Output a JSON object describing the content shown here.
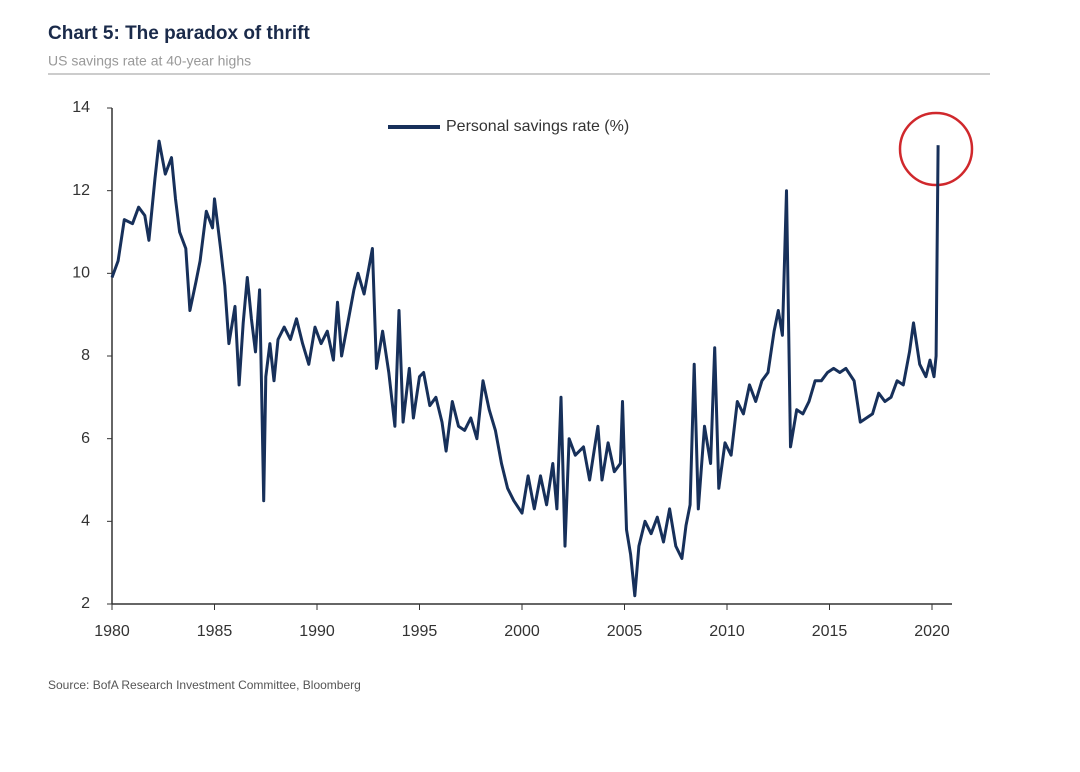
{
  "chart_data": {
    "type": "line",
    "title": "Chart 5: The paradox of thrift",
    "subtitle": "US savings rate at 40-year highs",
    "source": "Source: BofA Research Investment Committee, Bloomberg",
    "xlim": [
      1980,
      2021
    ],
    "xticks": [
      1980,
      1985,
      1990,
      1995,
      2000,
      2005,
      2010,
      2015,
      2020
    ],
    "ylim": [
      2,
      14
    ],
    "yticks": [
      2,
      4,
      6,
      8,
      10,
      12,
      14
    ],
    "grid": false,
    "legend": "top",
    "series": [
      {
        "name": "Personal savings rate (%)",
        "color": "#17305a",
        "x": [
          1980.0,
          1980.3,
          1980.6,
          1981.0,
          1981.3,
          1981.6,
          1981.8,
          1982.1,
          1982.3,
          1982.6,
          1982.9,
          1983.1,
          1983.3,
          1983.6,
          1983.8,
          1984.1,
          1984.3,
          1984.6,
          1984.9,
          1985.0,
          1985.3,
          1985.5,
          1985.7,
          1986.0,
          1986.2,
          1986.4,
          1986.6,
          1986.8,
          1987.0,
          1987.2,
          1987.3,
          1987.4,
          1987.5,
          1987.7,
          1987.9,
          1988.1,
          1988.4,
          1988.7,
          1989.0,
          1989.3,
          1989.6,
          1989.9,
          1990.2,
          1990.5,
          1990.8,
          1991.0,
          1991.2,
          1991.5,
          1991.8,
          1992.0,
          1992.3,
          1992.7,
          1992.9,
          1993.2,
          1993.5,
          1993.8,
          1994.0,
          1994.2,
          1994.5,
          1994.7,
          1995.0,
          1995.2,
          1995.5,
          1995.8,
          1996.1,
          1996.3,
          1996.6,
          1996.9,
          1997.2,
          1997.5,
          1997.8,
          1998.1,
          1998.4,
          1998.7,
          1999.0,
          1999.3,
          1999.6,
          2000.0,
          2000.3,
          2000.6,
          2000.9,
          2001.2,
          2001.5,
          2001.7,
          2001.9,
          2002.1,
          2002.3,
          2002.6,
          2003.0,
          2003.3,
          2003.7,
          2003.9,
          2004.2,
          2004.5,
          2004.8,
          2004.9,
          2005.1,
          2005.3,
          2005.5,
          2005.7,
          2006.0,
          2006.3,
          2006.6,
          2006.9,
          2007.2,
          2007.5,
          2007.8,
          2008.0,
          2008.2,
          2008.4,
          2008.6,
          2008.9,
          2009.2,
          2009.4,
          2009.6,
          2009.9,
          2010.2,
          2010.5,
          2010.8,
          2011.1,
          2011.4,
          2011.7,
          2012.0,
          2012.3,
          2012.5,
          2012.7,
          2012.9,
          2013.1,
          2013.4,
          2013.7,
          2014.0,
          2014.3,
          2014.6,
          2014.9,
          2015.2,
          2015.5,
          2015.8,
          2016.2,
          2016.5,
          2016.8,
          2017.1,
          2017.4,
          2017.7,
          2018.0,
          2018.3,
          2018.6,
          2018.9,
          2019.1,
          2019.4,
          2019.7,
          2019.9,
          2020.1,
          2020.2,
          2020.3
        ],
        "values": [
          9.9,
          10.3,
          11.3,
          11.2,
          11.6,
          11.4,
          10.8,
          12.3,
          13.2,
          12.4,
          12.8,
          11.8,
          11.0,
          10.6,
          9.1,
          9.8,
          10.3,
          11.5,
          11.1,
          11.8,
          10.6,
          9.7,
          8.3,
          9.2,
          7.3,
          8.8,
          9.9,
          8.9,
          8.1,
          9.6,
          7.2,
          4.5,
          7.5,
          8.3,
          7.4,
          8.4,
          8.7,
          8.4,
          8.9,
          8.3,
          7.8,
          8.7,
          8.3,
          8.6,
          7.9,
          9.3,
          8.0,
          8.8,
          9.6,
          10.0,
          9.5,
          10.6,
          7.7,
          8.6,
          7.6,
          6.3,
          9.1,
          6.4,
          7.7,
          6.5,
          7.5,
          7.6,
          6.8,
          7.0,
          6.4,
          5.7,
          6.9,
          6.3,
          6.2,
          6.5,
          6.0,
          7.4,
          6.7,
          6.2,
          5.4,
          4.8,
          4.5,
          4.2,
          5.1,
          4.3,
          5.1,
          4.4,
          5.4,
          4.3,
          7.0,
          3.4,
          6.0,
          5.6,
          5.8,
          5.0,
          6.3,
          5.0,
          5.9,
          5.2,
          5.4,
          6.9,
          3.8,
          3.2,
          2.2,
          3.4,
          4.0,
          3.7,
          4.1,
          3.5,
          4.3,
          3.4,
          3.1,
          3.9,
          4.4,
          7.8,
          4.3,
          6.3,
          5.4,
          8.2,
          4.8,
          5.9,
          5.6,
          6.9,
          6.6,
          7.3,
          6.9,
          7.4,
          7.6,
          8.6,
          9.1,
          8.5,
          12.0,
          5.8,
          6.7,
          6.6,
          6.9,
          7.4,
          7.4,
          7.6,
          7.7,
          7.6,
          7.7,
          7.4,
          6.4,
          6.5,
          6.6,
          7.1,
          6.9,
          7.0,
          7.4,
          7.3,
          8.1,
          8.8,
          7.8,
          7.5,
          7.9,
          7.5,
          8.0,
          13.1
        ]
      }
    ]
  }
}
